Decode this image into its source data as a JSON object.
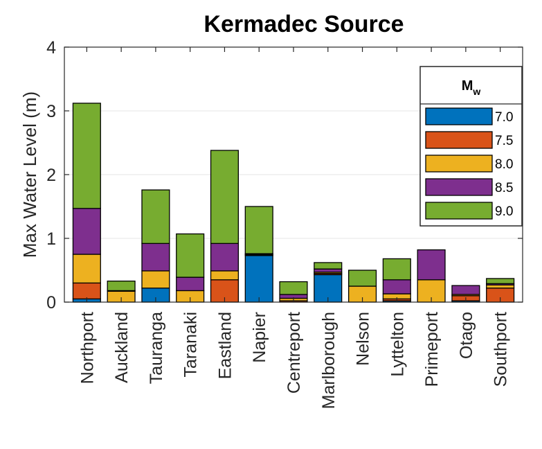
{
  "chart_data": {
    "type": "bar",
    "stacked": true,
    "title": "Kermadec Source",
    "xlabel": "",
    "ylabel": "Max Water Level (m)",
    "ylim": [
      0,
      4
    ],
    "yticks": [
      "0",
      "1",
      "2",
      "3",
      "4"
    ],
    "grid": true,
    "legend_position": "top-right",
    "legend_title": "M",
    "legend_title_sub": "w",
    "categories": [
      "Northport",
      "Auckland",
      "Tauranga",
      "Taranaki",
      "Eastland",
      "Napier",
      "Centreport",
      "Marlborough",
      "Nelson",
      "Lyttelton",
      "Primeport",
      "Otago",
      "Southport"
    ],
    "series": [
      {
        "name": "7.0",
        "color": "#0072BD",
        "values": [
          0.05,
          0.0,
          0.22,
          0.0,
          0.0,
          0.73,
          0.0,
          0.43,
          0.0,
          0.02,
          0.0,
          0.02,
          0.0
        ]
      },
      {
        "name": "7.5",
        "color": "#D95319",
        "values": [
          0.25,
          0.0,
          0.0,
          0.0,
          0.35,
          0.01,
          0.02,
          0.02,
          0.0,
          0.03,
          0.0,
          0.08,
          0.22
        ]
      },
      {
        "name": "8.0",
        "color": "#EDB120",
        "values": [
          0.45,
          0.17,
          0.27,
          0.18,
          0.14,
          0.01,
          0.04,
          0.02,
          0.25,
          0.08,
          0.35,
          0.02,
          0.05
        ]
      },
      {
        "name": "8.5",
        "color": "#7E2F8E",
        "values": [
          0.72,
          0.01,
          0.43,
          0.21,
          0.43,
          0.01,
          0.06,
          0.05,
          0.0,
          0.22,
          0.47,
          0.14,
          0.02
        ]
      },
      {
        "name": "9.0",
        "color": "#77AC30",
        "values": [
          1.65,
          0.15,
          0.84,
          0.68,
          1.46,
          0.74,
          0.2,
          0.1,
          0.25,
          0.33,
          0.0,
          0.0,
          0.08
        ]
      }
    ]
  }
}
